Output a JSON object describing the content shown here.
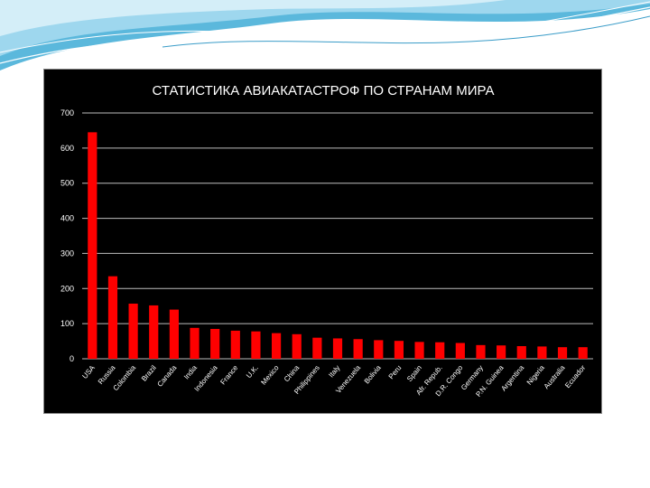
{
  "theme": {
    "chart_background": "#000000",
    "bar_color": "#ff0000",
    "grid_color": "#bdbdbd",
    "text_color": "#ffffff",
    "decoration_color": "#5bb8dc"
  },
  "chart_data": {
    "type": "bar",
    "title": "СТАТИСТИКА АВИАКАТАСТРОФ ПО СТРАНАМ МИРА",
    "xlabel": "",
    "ylabel": "",
    "ylim": [
      0,
      700
    ],
    "yticks": [
      0,
      100,
      200,
      300,
      400,
      500,
      600,
      700
    ],
    "grid": true,
    "legend": "none",
    "categories": [
      "USA",
      "Russia",
      "Colombia",
      "Brazil",
      "Canada",
      "India",
      "Indonesia",
      "France",
      "U.K.",
      "Mexico",
      "China",
      "Philippines",
      "Italy",
      "Venezuela",
      "Bolivia",
      "Peru",
      "Spain",
      "Afr. Repub.",
      "D.R. Congo",
      "Germany",
      "P.N. Guinea",
      "Argentina",
      "Nigeria",
      "Australia",
      "Ecuador"
    ],
    "values": [
      645,
      235,
      157,
      152,
      140,
      88,
      85,
      80,
      78,
      73,
      70,
      60,
      58,
      56,
      53,
      51,
      48,
      47,
      45,
      39,
      38,
      36,
      35,
      33,
      33
    ]
  }
}
